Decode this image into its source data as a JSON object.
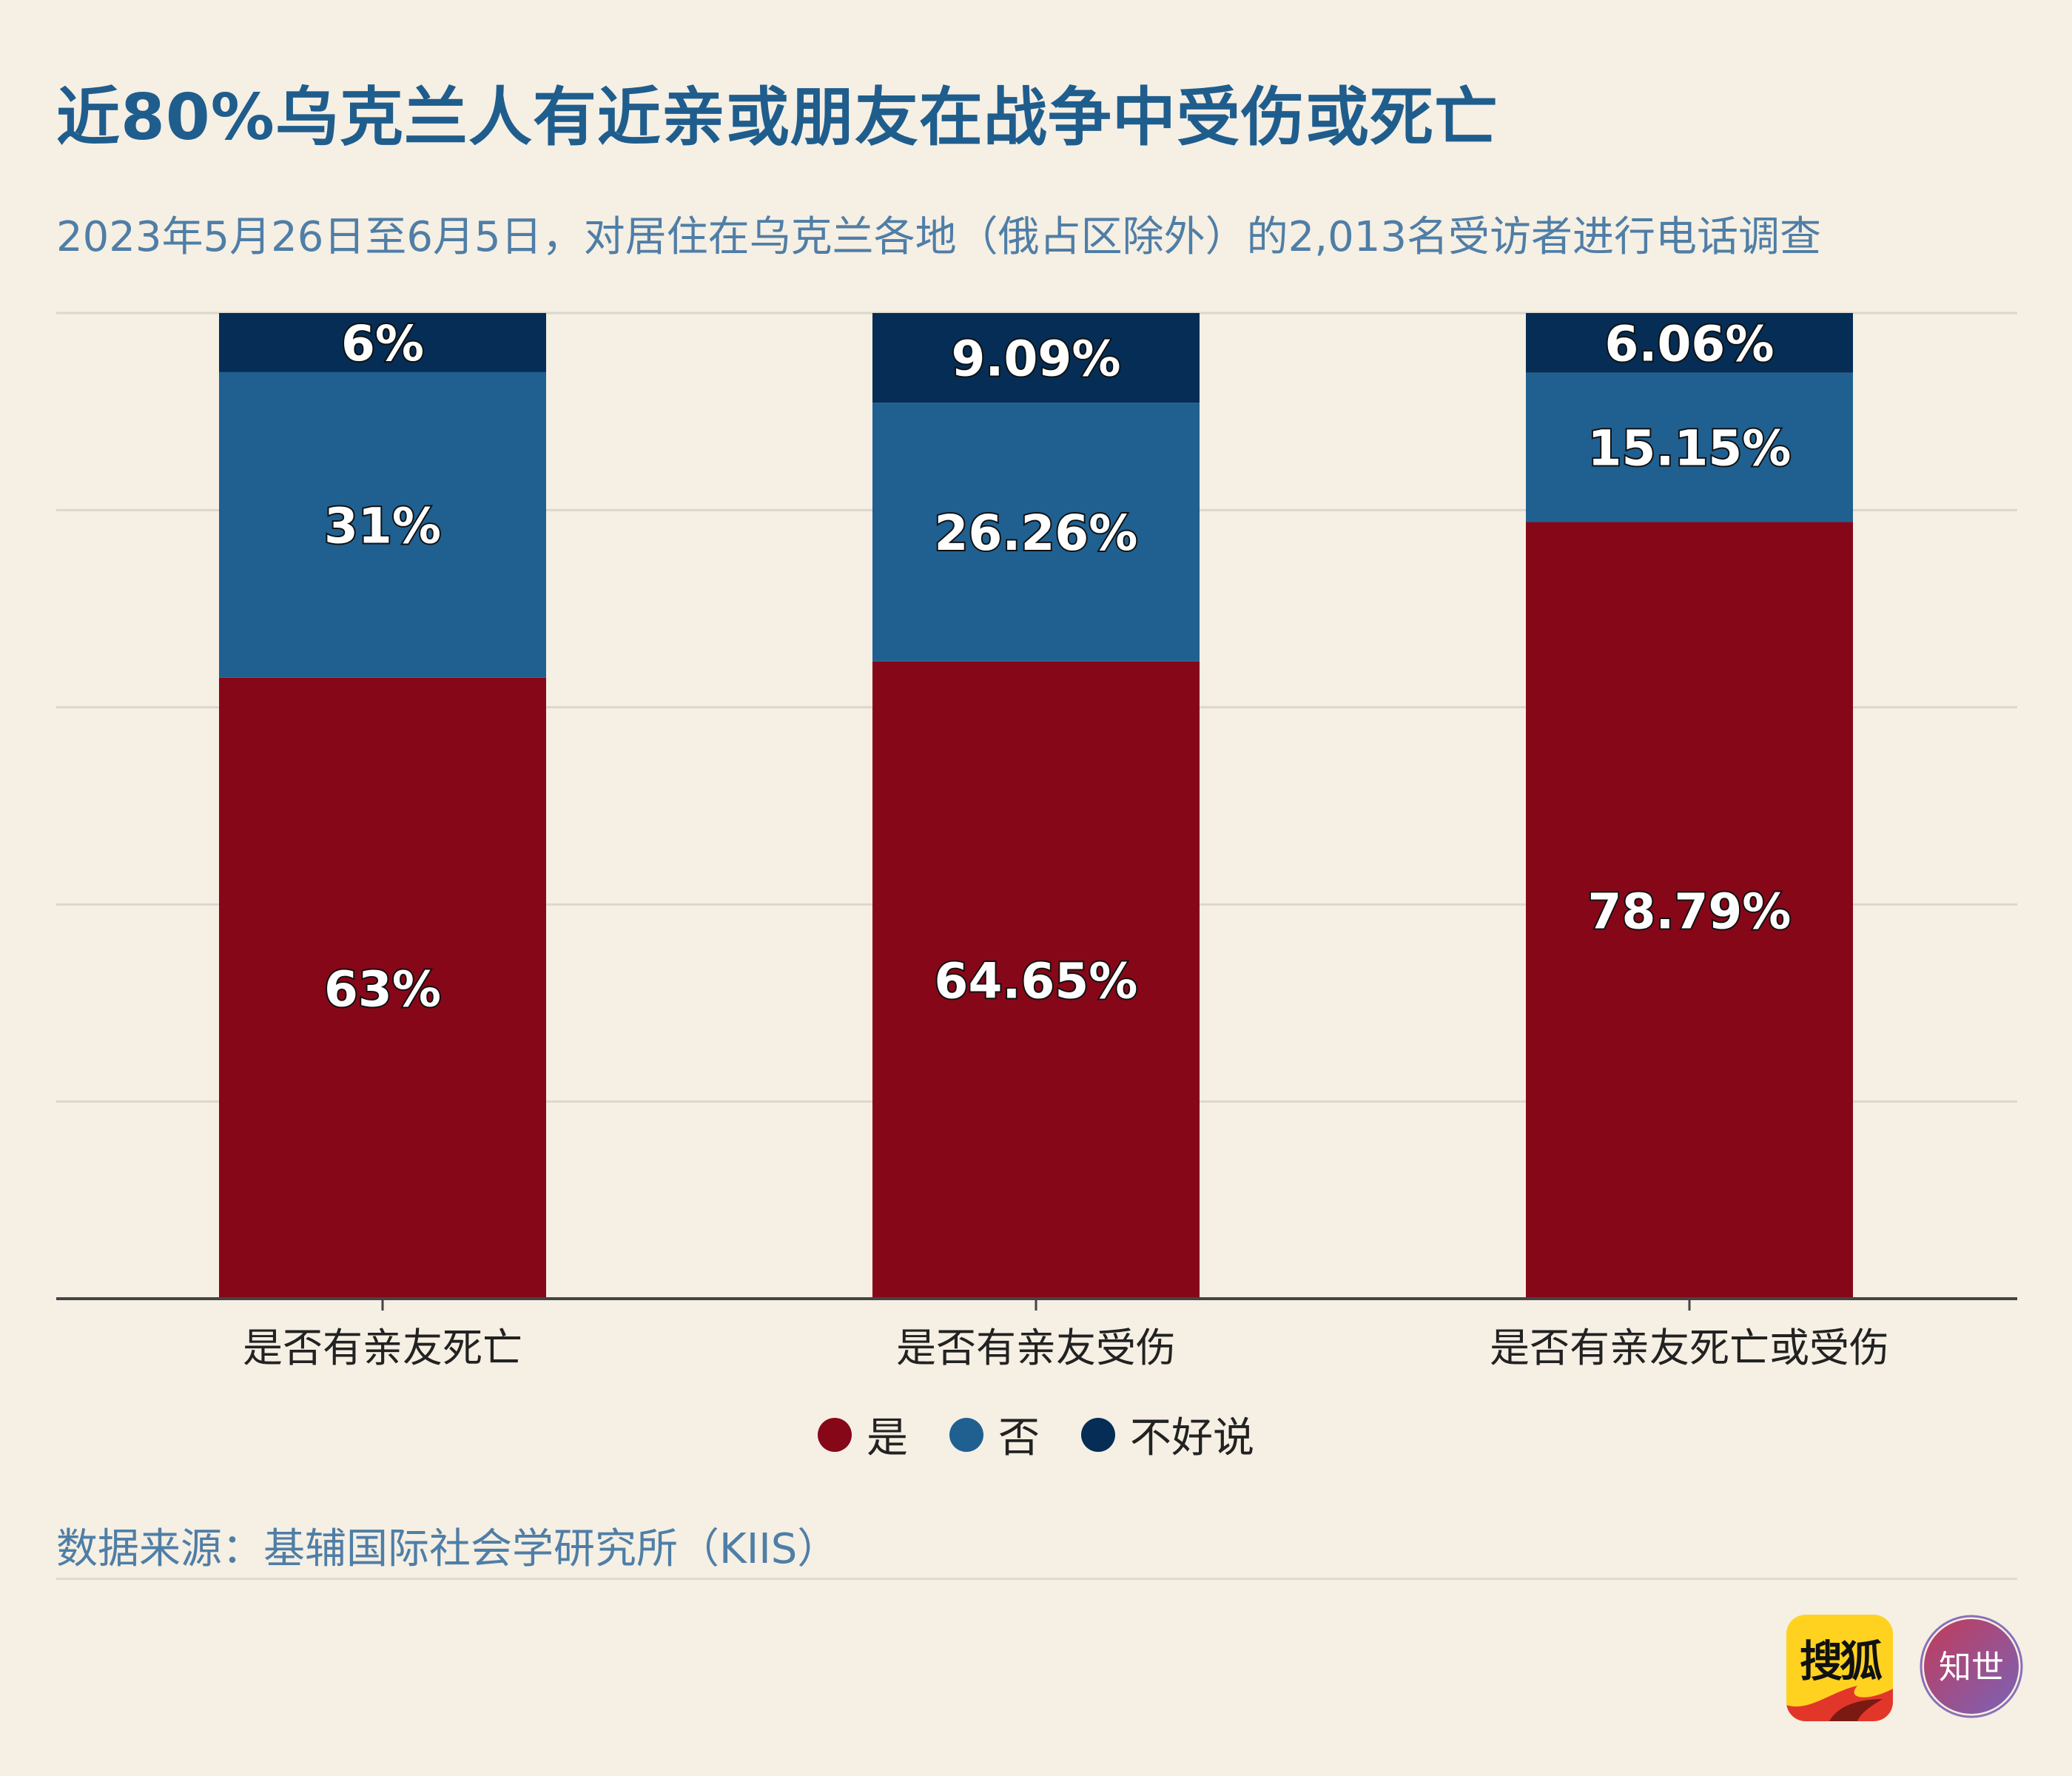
{
  "title": "近80%乌克兰人有近亲或朋友在战争中受伤或死亡",
  "subtitle": "2023年5月26日至6月5日，对居住在乌克兰各地（俄占区除外）的2,013名受访者进行电话调查",
  "source": "数据来源：基辅国际社会学研究所（KIIS）",
  "logos": {
    "sohu": "搜狐",
    "zhishi": "知世"
  },
  "colors": {
    "yes": "#860718",
    "no": "#1f6090",
    "unsure": "#052d55",
    "grid": "#dcd7cc",
    "axis": "#444444"
  },
  "legend": [
    {
      "label": "是",
      "color": "#860718"
    },
    {
      "label": "否",
      "color": "#1f6090"
    },
    {
      "label": "不好说",
      "color": "#052d55"
    }
  ],
  "chart_data": {
    "type": "bar",
    "stacked": true,
    "categories": [
      "是否有亲友死亡",
      "是否有亲友受伤",
      "是否有亲友死亡或受伤"
    ],
    "series": [
      {
        "name": "是",
        "values": [
          63,
          64.65,
          78.79
        ],
        "labels": [
          "63%",
          "64.65%",
          "78.79%"
        ]
      },
      {
        "name": "否",
        "values": [
          31,
          26.26,
          15.15
        ],
        "labels": [
          "31%",
          "26.26%",
          "15.15%"
        ]
      },
      {
        "name": "不好说",
        "values": [
          6,
          9.09,
          6.06
        ],
        "labels": [
          "6%",
          "9.09%",
          "6.06%"
        ]
      }
    ],
    "ylim": [
      0,
      100
    ],
    "grid": true,
    "legend_position": "bottom"
  }
}
